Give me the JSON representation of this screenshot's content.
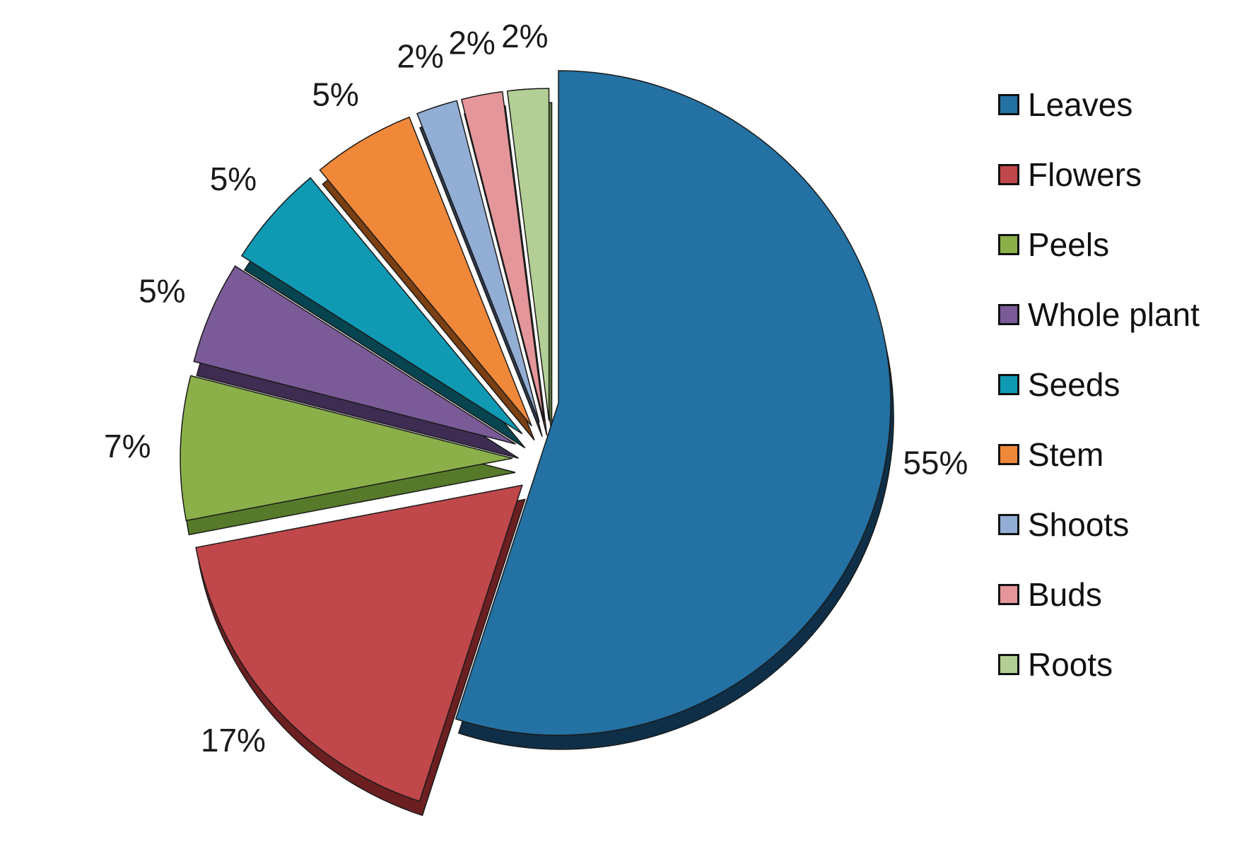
{
  "chart_data": {
    "type": "pie",
    "title": "",
    "slices": [
      {
        "name": "Leaves",
        "value": 55,
        "label": "55%",
        "color": "#2471a3",
        "side": "#0e2f47"
      },
      {
        "name": "Flowers",
        "value": 17,
        "label": "17%",
        "color": "#c0474a",
        "side": "#6b1f21"
      },
      {
        "name": "Peels",
        "value": 7,
        "label": "7%",
        "color": "#8bb04a",
        "side": "#567a2a"
      },
      {
        "name": "Whole plant",
        "value": 5,
        "label": "5%",
        "color": "#7a5b98",
        "side": "#3e2c52"
      },
      {
        "name": "Seeds",
        "value": 5,
        "label": "5%",
        "color": "#0f99b3",
        "side": "#06444f"
      },
      {
        "name": "Stem",
        "value": 5,
        "label": "5%",
        "color": "#f0883a",
        "side": "#7a3f12"
      },
      {
        "name": "Shoots",
        "value": 2,
        "label": "2%",
        "color": "#93aed4",
        "side": "#2f3d52"
      },
      {
        "name": "Buds",
        "value": 2,
        "label": "2%",
        "color": "#e5969a",
        "side": "#8a4a4d"
      },
      {
        "name": "Roots",
        "value": 2,
        "label": "2%",
        "color": "#b3cf95",
        "side": "#5d7a3f"
      }
    ],
    "legend_position": "right"
  }
}
